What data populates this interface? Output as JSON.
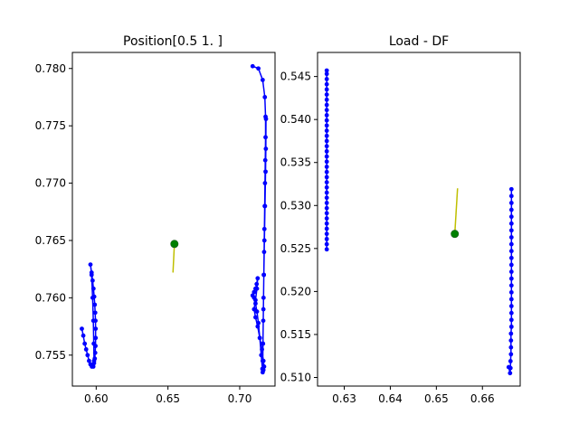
{
  "chart_data": [
    {
      "type": "line",
      "title": "Position[0.5 1. ]",
      "xlabel": "",
      "ylabel": "",
      "xlim": [
        0.5834,
        0.7246
      ],
      "ylim": [
        0.7523,
        0.7814
      ],
      "xticks": [
        0.6,
        0.65,
        0.7
      ],
      "xtick_labels": [
        "0.60",
        "0.65",
        "0.70"
      ],
      "yticks": [
        0.755,
        0.76,
        0.765,
        0.77,
        0.775,
        0.78
      ],
      "ytick_labels": [
        "0.755",
        "0.760",
        "0.765",
        "0.770",
        "0.775",
        "0.780"
      ],
      "grid": false,
      "series": [
        {
          "color": "#0000ff",
          "marker": "dot",
          "points": [
            [
              0.59,
              0.7573
            ],
            [
              0.591,
              0.7567
            ],
            [
              0.592,
              0.756
            ],
            [
              0.593,
              0.7555
            ],
            [
              0.594,
              0.755
            ],
            [
              0.595,
              0.7545
            ],
            [
              0.596,
              0.7542
            ],
            [
              0.597,
              0.754
            ],
            [
              0.598,
              0.754
            ],
            [
              0.5985,
              0.7543
            ],
            [
              0.599,
              0.7547
            ],
            [
              0.5993,
              0.7552
            ],
            [
              0.5995,
              0.7558
            ],
            [
              0.5996,
              0.7565
            ],
            [
              0.5996,
              0.7573
            ],
            [
              0.5995,
              0.758
            ],
            [
              0.5993,
              0.7587
            ],
            [
              0.599,
              0.7594
            ],
            [
              0.5986,
              0.7601
            ],
            [
              0.5981,
              0.7608
            ],
            [
              0.5975,
              0.7615
            ],
            [
              0.5968,
              0.7622
            ],
            [
              0.596,
              0.7629
            ],
            [
              0.5968,
              0.762
            ],
            [
              0.5975,
              0.76
            ],
            [
              0.598,
              0.758
            ],
            [
              0.5983,
              0.756
            ],
            [
              0.5985,
              0.7545
            ]
          ]
        },
        {
          "color": "#0000ff",
          "marker": "dot",
          "points": [
            [
              0.709,
              0.7802
            ],
            [
              0.713,
              0.78
            ],
            [
              0.716,
              0.779
            ],
            [
              0.7175,
              0.7775
            ],
            [
              0.718,
              0.7758
            ],
            [
              0.718,
              0.774
            ],
            [
              0.7178,
              0.772
            ],
            [
              0.7176,
              0.77
            ],
            [
              0.7174,
              0.768
            ],
            [
              0.7172,
              0.766
            ],
            [
              0.717,
              0.764
            ],
            [
              0.7168,
              0.762
            ],
            [
              0.7166,
              0.76
            ],
            [
              0.7164,
              0.758
            ],
            [
              0.7162,
              0.756
            ],
            [
              0.716,
              0.7545
            ],
            [
              0.7158,
              0.7538
            ],
            [
              0.715,
              0.755
            ],
            [
              0.714,
              0.7565
            ],
            [
              0.713,
              0.7578
            ],
            [
              0.712,
              0.7588
            ],
            [
              0.711,
              0.7595
            ],
            [
              0.71,
              0.76
            ],
            [
              0.709,
              0.7602
            ],
            [
              0.71,
              0.7605
            ],
            [
              0.711,
              0.7608
            ],
            [
              0.7118,
              0.7612
            ],
            [
              0.7125,
              0.7617
            ],
            [
              0.712,
              0.7608
            ],
            [
              0.711,
              0.7598
            ],
            [
              0.71,
              0.759
            ],
            [
              0.711,
              0.7583
            ],
            [
              0.7125,
              0.7575
            ],
            [
              0.714,
              0.7565
            ],
            [
              0.7155,
              0.7555
            ],
            [
              0.7165,
              0.7545
            ],
            [
              0.717,
              0.754
            ],
            [
              0.7165,
              0.7537
            ],
            [
              0.716,
              0.7535
            ],
            [
              0.7162,
              0.756
            ],
            [
              0.7165,
              0.759
            ],
            [
              0.7168,
              0.762
            ],
            [
              0.7172,
              0.765
            ],
            [
              0.7176,
              0.768
            ],
            [
              0.718,
              0.771
            ],
            [
              0.7182,
              0.773
            ],
            [
              0.7183,
              0.7756
            ]
          ]
        },
        {
          "color": "#bfbf00",
          "marker": "none",
          "points": [
            [
              0.6535,
              0.7622
            ],
            [
              0.6545,
              0.7647
            ]
          ]
        },
        {
          "color": "#008000",
          "marker": "big-dot",
          "points": [
            [
              0.6545,
              0.7647
            ]
          ]
        }
      ]
    },
    {
      "type": "line",
      "title": "Load - DF",
      "xlabel": "",
      "ylabel": "",
      "xlim": [
        0.6242,
        0.6682
      ],
      "ylim": [
        0.509,
        0.5478
      ],
      "xticks": [
        0.63,
        0.64,
        0.65,
        0.66
      ],
      "xtick_labels": [
        "0.63",
        "0.64",
        "0.65",
        "0.66"
      ],
      "yticks": [
        0.51,
        0.515,
        0.52,
        0.525,
        0.53,
        0.535,
        0.54,
        0.545
      ],
      "ytick_labels": [
        "0.510",
        "0.515",
        "0.520",
        "0.525",
        "0.530",
        "0.535",
        "0.540",
        "0.545"
      ],
      "grid": false,
      "series": [
        {
          "color": "#0000ff",
          "marker": "dot",
          "points": [
            [
              0.6262,
              0.5249
            ],
            [
              0.6262,
              0.5255
            ],
            [
              0.6262,
              0.5261
            ],
            [
              0.6262,
              0.5267
            ],
            [
              0.6262,
              0.5273
            ],
            [
              0.6262,
              0.5279
            ],
            [
              0.6262,
              0.5285
            ],
            [
              0.6262,
              0.5291
            ],
            [
              0.6262,
              0.5297
            ],
            [
              0.6262,
              0.5303
            ],
            [
              0.6262,
              0.5309
            ],
            [
              0.6262,
              0.5315
            ],
            [
              0.6262,
              0.5321
            ],
            [
              0.6262,
              0.5327
            ],
            [
              0.6262,
              0.5333
            ],
            [
              0.6262,
              0.5339
            ],
            [
              0.6262,
              0.5345
            ],
            [
              0.6262,
              0.5351
            ],
            [
              0.6262,
              0.5357
            ],
            [
              0.6262,
              0.5363
            ],
            [
              0.6262,
              0.5369
            ],
            [
              0.6262,
              0.5375
            ],
            [
              0.6262,
              0.5381
            ],
            [
              0.6262,
              0.5387
            ],
            [
              0.6262,
              0.5393
            ],
            [
              0.6262,
              0.5399
            ],
            [
              0.6262,
              0.5405
            ],
            [
              0.6262,
              0.5411
            ],
            [
              0.6262,
              0.5417
            ],
            [
              0.6262,
              0.5423
            ],
            [
              0.6262,
              0.5429
            ],
            [
              0.6262,
              0.5435
            ],
            [
              0.6262,
              0.5441
            ],
            [
              0.6262,
              0.5447
            ],
            [
              0.6262,
              0.5453
            ],
            [
              0.6262,
              0.5457
            ]
          ]
        },
        {
          "color": "#0000ff",
          "marker": "dot",
          "points": [
            [
              0.6663,
              0.5319
            ],
            [
              0.6663,
              0.5311
            ],
            [
              0.6663,
              0.5303
            ],
            [
              0.6663,
              0.5295
            ],
            [
              0.6663,
              0.5287
            ],
            [
              0.6663,
              0.5279
            ],
            [
              0.6663,
              0.5271
            ],
            [
              0.6663,
              0.5263
            ],
            [
              0.6663,
              0.5255
            ],
            [
              0.6663,
              0.5247
            ],
            [
              0.6663,
              0.5239
            ],
            [
              0.6663,
              0.5231
            ],
            [
              0.6663,
              0.5223
            ],
            [
              0.6663,
              0.5215
            ],
            [
              0.6663,
              0.5207
            ],
            [
              0.6663,
              0.5199
            ],
            [
              0.6663,
              0.5191
            ],
            [
              0.6663,
              0.5183
            ],
            [
              0.6663,
              0.5175
            ],
            [
              0.6663,
              0.5167
            ],
            [
              0.6663,
              0.5159
            ],
            [
              0.6662,
              0.5151
            ],
            [
              0.6662,
              0.5143
            ],
            [
              0.6662,
              0.5135
            ],
            [
              0.6662,
              0.5127
            ],
            [
              0.6661,
              0.5119
            ],
            [
              0.6661,
              0.5111
            ],
            [
              0.666,
              0.5105
            ],
            [
              0.6657,
              0.5112
            ]
          ]
        },
        {
          "color": "#bfbf00",
          "marker": "none",
          "points": [
            [
              0.654,
              0.5267
            ],
            [
              0.6546,
              0.532
            ]
          ]
        },
        {
          "color": "#008000",
          "marker": "big-dot",
          "points": [
            [
              0.654,
              0.5267
            ]
          ]
        }
      ]
    }
  ]
}
